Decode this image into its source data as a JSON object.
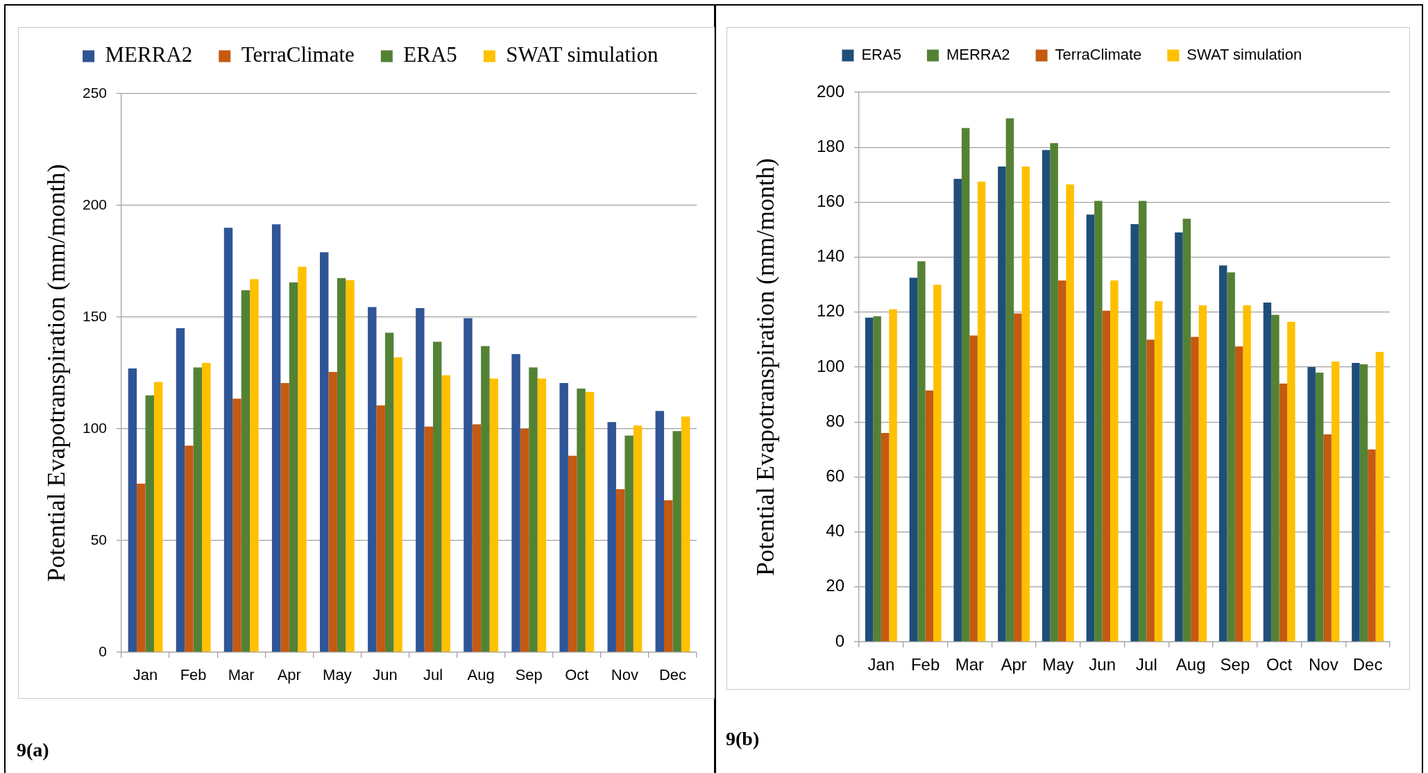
{
  "chart_data": [
    {
      "type": "bar",
      "categories": [
        "Jan",
        "Feb",
        "Mar",
        "Apr",
        "May",
        "Jun",
        "Jul",
        "Aug",
        "Sep",
        "Oct",
        "Nov",
        "Dec"
      ],
      "series": [
        {
          "name": "MERRA2",
          "color": "#2f5597",
          "values": [
            127,
            145,
            190,
            191.5,
            179,
            154.5,
            154,
            149.5,
            133.5,
            120.5,
            103,
            108
          ]
        },
        {
          "name": "TerraClimate",
          "color": "#c55a11",
          "values": [
            75.5,
            92.5,
            113.5,
            120.5,
            125.5,
            110.5,
            101,
            102,
            100,
            88,
            73,
            68
          ]
        },
        {
          "name": "ERA5",
          "color": "#548235",
          "values": [
            115,
            127.5,
            162,
            165.5,
            167.5,
            143,
            139,
            137,
            127.5,
            118,
            97,
            99
          ]
        },
        {
          "name": "SWAT simulation",
          "color": "#ffc000",
          "values": [
            121,
            129.5,
            167,
            172.5,
            166.5,
            132,
            124,
            122.5,
            122.5,
            116.5,
            101.5,
            105.5
          ]
        }
      ],
      "ylabel": "Potential Evapotranspiration (mm/month)",
      "ylim": [
        0,
        250
      ],
      "yticks": [
        0,
        50,
        100,
        150,
        200,
        250
      ],
      "grid": "y",
      "legend": "top",
      "annotations": [
        "9(a)"
      ]
    },
    {
      "type": "bar",
      "categories": [
        "Jan",
        "Feb",
        "Mar",
        "Apr",
        "May",
        "Jun",
        "Jul",
        "Aug",
        "Sep",
        "Oct",
        "Nov",
        "Dec"
      ],
      "series": [
        {
          "name": "ERA5",
          "color": "#1f4e79",
          "values": [
            118,
            132.5,
            168.5,
            173,
            179,
            155.5,
            152,
            149,
            137,
            123.5,
            100,
            101.5
          ]
        },
        {
          "name": "MERRA2",
          "color": "#548235",
          "values": [
            118.5,
            138.5,
            187,
            190.5,
            181.5,
            160.5,
            160.5,
            154,
            134.5,
            119,
            98,
            101
          ]
        },
        {
          "name": "TerraClimate",
          "color": "#c55a11",
          "values": [
            76,
            91.5,
            111.5,
            119.5,
            131.5,
            120.5,
            110,
            111,
            107.5,
            94,
            75.5,
            70
          ]
        },
        {
          "name": "SWAT simulation",
          "color": "#ffc000",
          "values": [
            121,
            130,
            167.5,
            173,
            166.5,
            131.5,
            124,
            122.5,
            122.5,
            116.5,
            102,
            105.5
          ]
        }
      ],
      "ylabel": "Potential Evapotranspiration (mm/month)",
      "ylim": [
        0,
        200
      ],
      "yticks": [
        0,
        20,
        40,
        60,
        80,
        100,
        120,
        140,
        160,
        180,
        200
      ],
      "grid": "y",
      "legend": "top",
      "annotations": [
        "9(b)"
      ]
    }
  ]
}
